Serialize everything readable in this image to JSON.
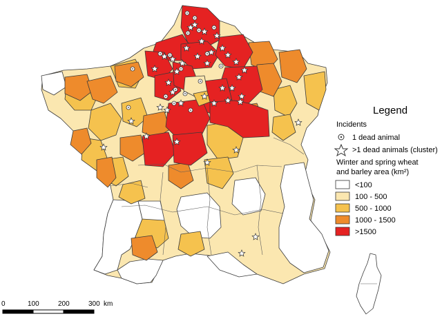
{
  "legend": {
    "title": "Legend",
    "incidents_heading": "Incidents",
    "incident_single": "1 dead animal",
    "incident_cluster": ">1 dead animals (cluster)",
    "area_heading_line1": "Winter and spring wheat",
    "area_heading_line2": "and barley area (km²)",
    "classes": [
      {
        "label": "<100",
        "color": "#ffffff"
      },
      {
        "label": "100 - 500",
        "color": "#fbe7b0"
      },
      {
        "label": "500 - 1000",
        "color": "#f5c24e"
      },
      {
        "label": "1000 - 1500",
        "color": "#ee8b2c"
      },
      {
        "label": ">1500",
        "color": "#e52222"
      }
    ]
  },
  "scale_bar": {
    "ticks": [
      "0",
      "100",
      "200",
      "300"
    ],
    "unit": "km"
  },
  "colors": {
    "white": "#ffffff",
    "pale": "#fbe7b0",
    "yellow": "#f5c24e",
    "orange": "#ee8b2c",
    "red": "#e52222",
    "border": "#3a3a3a"
  }
}
